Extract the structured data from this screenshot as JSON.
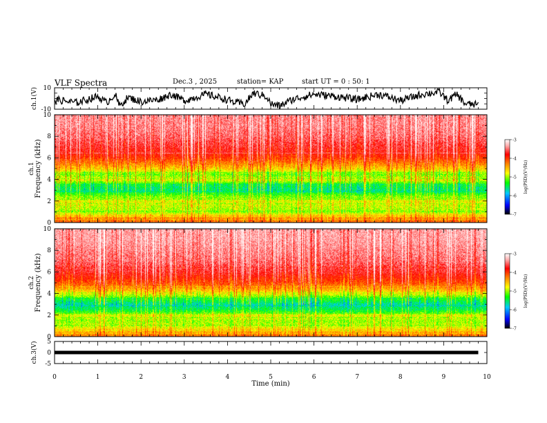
{
  "header": {
    "title": "VLF Spectra",
    "date": "Dec.3 , 2025",
    "station": "station= KAP",
    "start": "start UT = 0 : 50: 1"
  },
  "chart_data": [
    {
      "type": "line",
      "name": "ch1-waveform",
      "title": "",
      "xlabel": "",
      "ylabel": "ch.1(V)",
      "xlim": [
        0,
        10
      ],
      "ylim": [
        -10,
        10
      ],
      "ytick_labels": [
        "-10",
        "10"
      ],
      "x": [
        0.0,
        0.5,
        1.0,
        1.2,
        1.4,
        1.5,
        1.7,
        2.0,
        2.4,
        2.7,
        3.0,
        3.5,
        3.9,
        4.2,
        4.4,
        4.6,
        4.9,
        5.0,
        5.2,
        5.5,
        6.0,
        6.5,
        7.0,
        7.5,
        8.0,
        8.5,
        8.9,
        9.1,
        9.3,
        9.5,
        9.8
      ],
      "values": [
        -1,
        -4,
        2,
        -4,
        4,
        -7,
        1,
        -3,
        -1,
        4,
        -2,
        4,
        0,
        -4,
        -5,
        5,
        2,
        -5,
        -7,
        -1,
        4,
        2,
        -1,
        4,
        -2,
        4,
        6,
        -2,
        4,
        -5,
        -6
      ],
      "color": "#000000",
      "grid": false
    },
    {
      "type": "heatmap",
      "name": "ch1-spectrogram",
      "title": "",
      "ylabel": "ch.1\nFrequency (kHz)",
      "ylabel_lines": [
        "ch.1",
        "Frequency (kHz)"
      ],
      "xlim": [
        0,
        10
      ],
      "ylim": [
        0,
        10
      ],
      "ytick_labels": [
        "0",
        "2",
        "4",
        "6",
        "8",
        "10"
      ],
      "colorbar": {
        "label": "log(PSD)(V²/Hz)",
        "range": [
          -7,
          -3
        ],
        "tick_labels": [
          "-7",
          "-6",
          "-5",
          "-4",
          "-3"
        ],
        "colors": [
          "#000000",
          "#0000ff",
          "#00c8ff",
          "#00ff00",
          "#ffff00",
          "#ff8000",
          "#ff0000",
          "#ffb0b0",
          "#ffffff"
        ]
      },
      "profile_freq_khz": [
        0.0,
        0.5,
        1.0,
        1.5,
        2.0,
        2.5,
        3.0,
        3.5,
        4.0,
        4.5,
        5.0,
        5.5,
        6.0,
        6.5,
        7.0,
        8.0,
        9.0,
        10.0
      ],
      "profile_logpsd": [
        -4.4,
        -4.6,
        -5.2,
        -5.1,
        -5.0,
        -5.3,
        -5.7,
        -5.6,
        -5.0,
        -5.3,
        -4.8,
        -4.5,
        -4.2,
        -4.0,
        -3.9,
        -3.7,
        -3.6,
        -3.6
      ]
    },
    {
      "type": "heatmap",
      "name": "ch2-spectrogram",
      "title": "",
      "ylabel": "ch.2\nFrequency (kHz)",
      "ylabel_lines": [
        "ch.2",
        "Frequency (kHz)"
      ],
      "xlim": [
        0,
        10
      ],
      "ylim": [
        0,
        10
      ],
      "ytick_labels": [
        "0",
        "2",
        "4",
        "6",
        "8",
        "10"
      ],
      "colorbar": {
        "label": "log(PSD)(V²/Hz)",
        "range": [
          -7,
          -3
        ],
        "tick_labels": [
          "-7",
          "-6",
          "-5",
          "-4",
          "-3"
        ],
        "colors": [
          "#000000",
          "#0000ff",
          "#00c8ff",
          "#00ff00",
          "#ffff00",
          "#ff8000",
          "#ff0000",
          "#ffb0b0",
          "#ffffff"
        ]
      },
      "profile_freq_khz": [
        0.0,
        0.5,
        1.0,
        1.5,
        2.0,
        2.5,
        3.0,
        3.5,
        4.0,
        4.5,
        5.0,
        5.5,
        6.0,
        7.0,
        8.0,
        9.0,
        10.0
      ],
      "profile_logpsd": [
        -4.4,
        -4.7,
        -5.1,
        -5.2,
        -5.0,
        -5.6,
        -5.8,
        -5.5,
        -5.0,
        -4.6,
        -4.3,
        -4.1,
        -3.9,
        -3.7,
        -3.6,
        -3.5,
        -3.5
      ]
    },
    {
      "type": "line",
      "name": "ch3-waveform",
      "title": "",
      "ylabel": "ch.3(V)",
      "xlabel": "Time (min)",
      "xlim": [
        0,
        10
      ],
      "ylim": [
        -5,
        5
      ],
      "ytick_labels": [
        "-5",
        "0",
        "5"
      ],
      "xtick_labels": [
        "0",
        "1",
        "2",
        "3",
        "4",
        "5",
        "6",
        "7",
        "8",
        "9",
        "10"
      ],
      "x": [
        0.0,
        9.8
      ],
      "values": [
        0.0,
        0.0
      ],
      "color": "#000000",
      "grid": false
    }
  ]
}
